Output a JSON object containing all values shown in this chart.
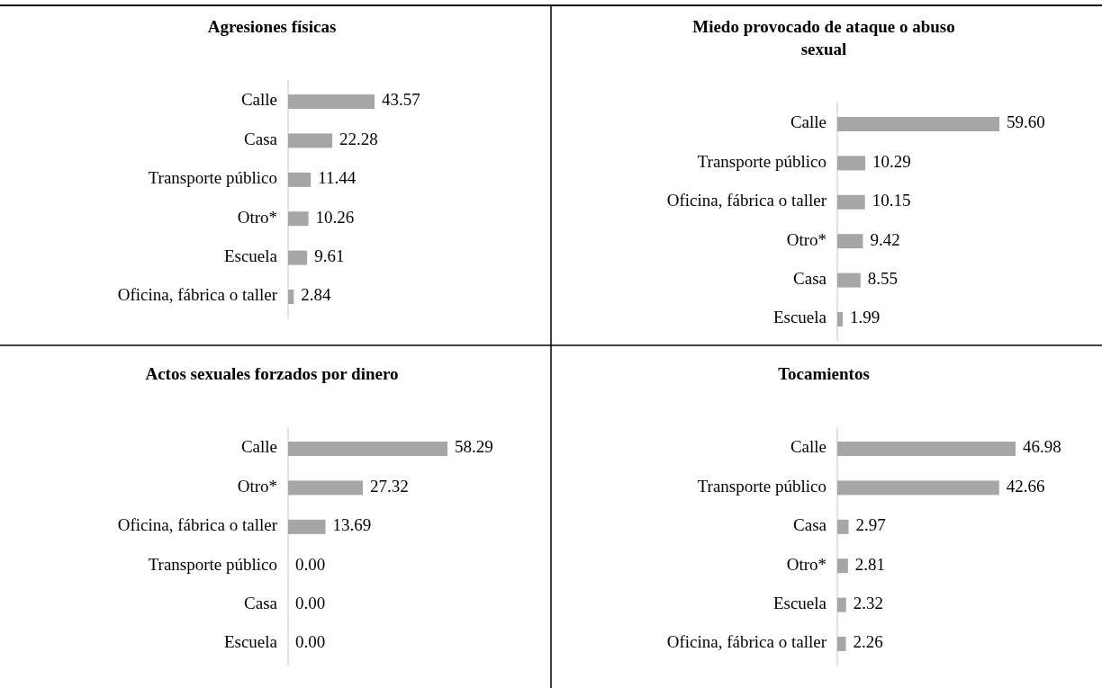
{
  "chart_data": [
    {
      "type": "bar",
      "orientation": "horizontal",
      "title": "Agresiones físicas",
      "color": "#a6a6a6",
      "categories": [
        "Calle",
        "Casa",
        "Transporte público",
        "Otro*",
        "Escuela",
        "Oficina, fábrica o taller"
      ],
      "values": [
        43.57,
        22.28,
        11.44,
        10.26,
        9.61,
        2.84
      ],
      "value_labels": [
        "43.57",
        "22.28",
        "11.44",
        "10.26",
        "9.61",
        "2.84"
      ]
    },
    {
      "type": "bar",
      "orientation": "horizontal",
      "title": "Miedo provocado de ataque o abuso sexual",
      "color": "#a6a6a6",
      "categories": [
        "Calle",
        "Transporte público",
        "Oficina, fábrica o taller",
        "Otro*",
        "Casa",
        "Escuela"
      ],
      "values": [
        59.6,
        10.29,
        10.15,
        9.42,
        8.55,
        1.99
      ],
      "value_labels": [
        "59.60",
        "10.29",
        "10.15",
        "9.42",
        "8.55",
        "1.99"
      ]
    },
    {
      "type": "bar",
      "orientation": "horizontal",
      "title": "Actos sexuales forzados por dinero",
      "color": "#a6a6a6",
      "categories": [
        "Calle",
        "Otro*",
        "Oficina, fábrica o taller",
        "Transporte público",
        "Casa",
        "Escuela"
      ],
      "values": [
        58.29,
        27.32,
        13.69,
        0,
        0,
        0
      ],
      "value_labels": [
        "58.29",
        "27.32",
        "13.69",
        "0.00",
        "0.00",
        "0.00"
      ]
    },
    {
      "type": "bar",
      "orientation": "horizontal",
      "title": "Tocamientos",
      "color": "#a6a6a6",
      "categories": [
        "Calle",
        "Transporte público",
        "Casa",
        "Otro*",
        "Escuela",
        "Oficina, fábrica o taller"
      ],
      "values": [
        46.98,
        42.66,
        2.97,
        2.81,
        2.32,
        2.26
      ],
      "value_labels": [
        "46.98",
        "42.66",
        "2.97",
        "2.81",
        "2.32",
        "2.26"
      ]
    }
  ]
}
